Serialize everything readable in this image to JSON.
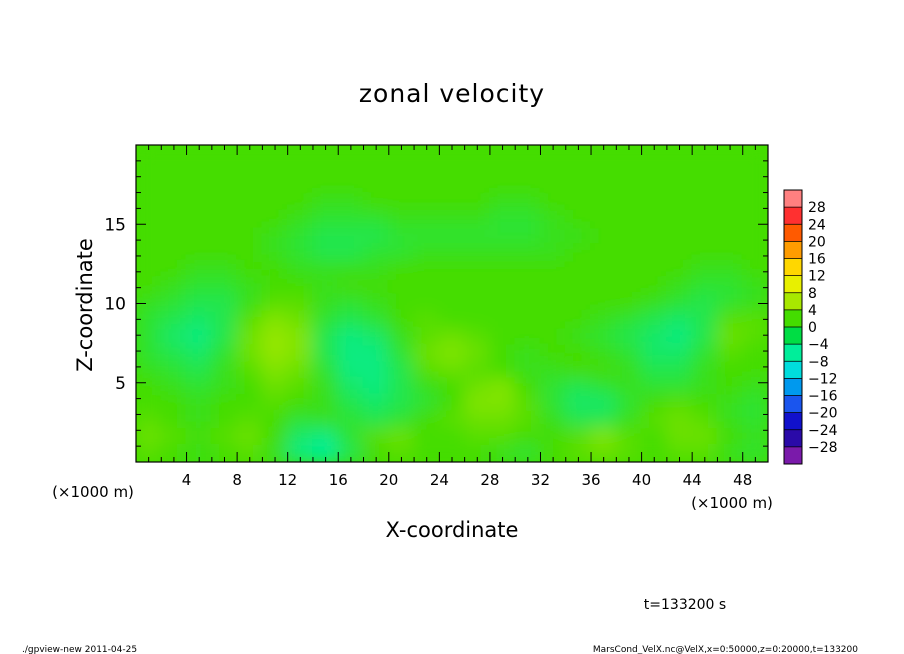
{
  "chart_data": {
    "type": "heatmap",
    "title": "zonal velocity",
    "xlabel": "X-coordinate",
    "ylabel": "Z-coordinate",
    "x_unit_label": "(×1000 m)",
    "x_unit_label_right": "(×1000 m)",
    "x_ticks": [
      4,
      8,
      12,
      16,
      20,
      24,
      28,
      32,
      36,
      40,
      44,
      48
    ],
    "y_ticks": [
      5,
      10,
      15
    ],
    "xlim": [
      0,
      50
    ],
    "ylim": [
      0,
      20
    ],
    "colorbar_levels": [
      "28",
      "24",
      "20",
      "16",
      "12",
      "8",
      "4",
      "0",
      "-4",
      "-8",
      "-12",
      "-16",
      "-20",
      "-24",
      "-28"
    ],
    "colorbar_colors": [
      "#ff8080",
      "#ff3030",
      "#ff5a00",
      "#ff9c00",
      "#ffd700",
      "#e8f000",
      "#a8e800",
      "#44dd00",
      "#00dd44",
      "#00ee9a",
      "#00dddd",
      "#0099ee",
      "#1a55ee",
      "#1111cc",
      "#2a0aa8",
      "#7a1aaa"
    ],
    "field_values": [
      [
        0,
        0,
        0,
        0,
        0,
        0,
        0,
        0,
        0,
        0,
        0,
        0,
        0,
        0,
        0,
        0,
        0,
        0,
        0,
        0,
        0,
        0,
        0,
        0,
        0
      ],
      [
        0,
        0,
        0,
        0,
        0,
        0,
        0,
        0,
        0,
        0,
        0,
        0,
        0,
        0,
        0,
        0,
        0,
        0,
        0,
        0,
        0,
        0,
        0,
        0,
        0
      ],
      [
        0,
        0,
        0,
        0,
        0,
        0,
        0,
        0,
        0,
        0,
        0,
        0,
        0,
        0,
        0,
        0,
        0,
        0,
        0,
        0,
        0,
        0,
        0,
        0,
        0
      ],
      [
        0,
        0,
        0,
        0,
        0,
        0,
        0,
        -1,
        -1,
        0,
        0,
        0,
        0,
        0,
        -1,
        -1,
        0,
        0,
        0,
        0,
        0,
        0,
        0,
        0,
        0
      ],
      [
        0,
        0,
        0,
        0,
        0,
        0,
        -1,
        -2,
        -2,
        -2,
        -1,
        -1,
        -1,
        -1,
        -2,
        -2,
        -1,
        0,
        0,
        0,
        0,
        0,
        0,
        0,
        0
      ],
      [
        0,
        0,
        0,
        0,
        0,
        -1,
        -2,
        -3,
        -3,
        -3,
        -2,
        -2,
        -2,
        -2,
        -2,
        -2,
        -1,
        -1,
        0,
        0,
        0,
        0,
        0,
        0,
        0
      ],
      [
        0,
        0,
        0,
        0,
        0,
        -1,
        -2,
        -3,
        -3,
        -2,
        -2,
        -1,
        -1,
        -1,
        -1,
        -1,
        -1,
        0,
        0,
        0,
        0,
        0,
        0,
        0,
        0
      ],
      [
        0,
        0,
        -1,
        -1,
        0,
        0,
        -1,
        -1,
        -1,
        -1,
        0,
        0,
        0,
        0,
        0,
        0,
        0,
        0,
        0,
        0,
        0,
        0,
        -1,
        -1,
        0
      ],
      [
        0,
        -1,
        -2,
        -2,
        -1,
        0,
        0,
        -1,
        0,
        0,
        0,
        0,
        0,
        0,
        0,
        0,
        0,
        0,
        0,
        0,
        0,
        -1,
        -2,
        -2,
        -1
      ],
      [
        -1,
        -2,
        -3,
        -3,
        -1,
        1,
        1,
        -1,
        -2,
        -1,
        0,
        0,
        0,
        0,
        0,
        0,
        0,
        0,
        0,
        0,
        -1,
        -2,
        -3,
        -2,
        -1
      ],
      [
        -2,
        -3,
        -4,
        -3,
        1,
        3,
        2,
        -2,
        -3,
        -2,
        0,
        1,
        0,
        0,
        0,
        0,
        0,
        0,
        -1,
        -2,
        -3,
        -4,
        -3,
        1,
        1
      ],
      [
        -2,
        -4,
        -5,
        -3,
        2,
        4,
        3,
        -3,
        -5,
        -4,
        -1,
        1,
        2,
        1,
        0,
        0,
        0,
        -1,
        -2,
        -3,
        -4,
        -5,
        -3,
        2,
        1
      ],
      [
        -2,
        -3,
        -4,
        -2,
        2,
        4,
        3,
        -3,
        -5,
        -5,
        -2,
        2,
        3,
        2,
        0,
        -1,
        0,
        0,
        -1,
        -2,
        -4,
        -4,
        -2,
        1,
        0
      ],
      [
        -1,
        -2,
        -3,
        -1,
        1,
        3,
        2,
        -2,
        -5,
        -5,
        -3,
        1,
        2,
        1,
        0,
        -1,
        -1,
        0,
        0,
        -1,
        -3,
        -3,
        -1,
        0,
        0
      ],
      [
        0,
        -1,
        -2,
        -1,
        0,
        2,
        1,
        -1,
        -4,
        -5,
        -3,
        -1,
        0,
        2,
        3,
        0,
        -2,
        -3,
        -2,
        -1,
        -2,
        -2,
        -1,
        0,
        -1
      ],
      [
        0,
        0,
        -1,
        0,
        0,
        1,
        0,
        -1,
        -3,
        -4,
        -3,
        -2,
        0,
        3,
        3,
        1,
        -2,
        -4,
        -4,
        -2,
        0,
        1,
        0,
        -1,
        -2
      ],
      [
        1,
        0,
        -1,
        0,
        1,
        0,
        -2,
        -1,
        -2,
        -3,
        -2,
        0,
        1,
        2,
        2,
        1,
        -1,
        -3,
        -3,
        -1,
        1,
        2,
        1,
        -1,
        -2
      ],
      [
        2,
        1,
        0,
        1,
        2,
        0,
        -4,
        -5,
        -2,
        1,
        2,
        0,
        0,
        1,
        1,
        0,
        0,
        1,
        3,
        1,
        0,
        2,
        2,
        0,
        -1
      ],
      [
        1,
        0,
        -1,
        0,
        1,
        -1,
        -5,
        -6,
        -3,
        0,
        1,
        0,
        0,
        0,
        -1,
        -2,
        0,
        1,
        2,
        1,
        0,
        1,
        1,
        -1,
        -2
      ]
    ]
  },
  "footer": {
    "time_label": "t=133200 s",
    "program_label": "./gpview-new  2011-04-25",
    "file_label": "MarsCond_VelX.nc@VelX,x=0:50000,z=0:20000,t=133200"
  }
}
